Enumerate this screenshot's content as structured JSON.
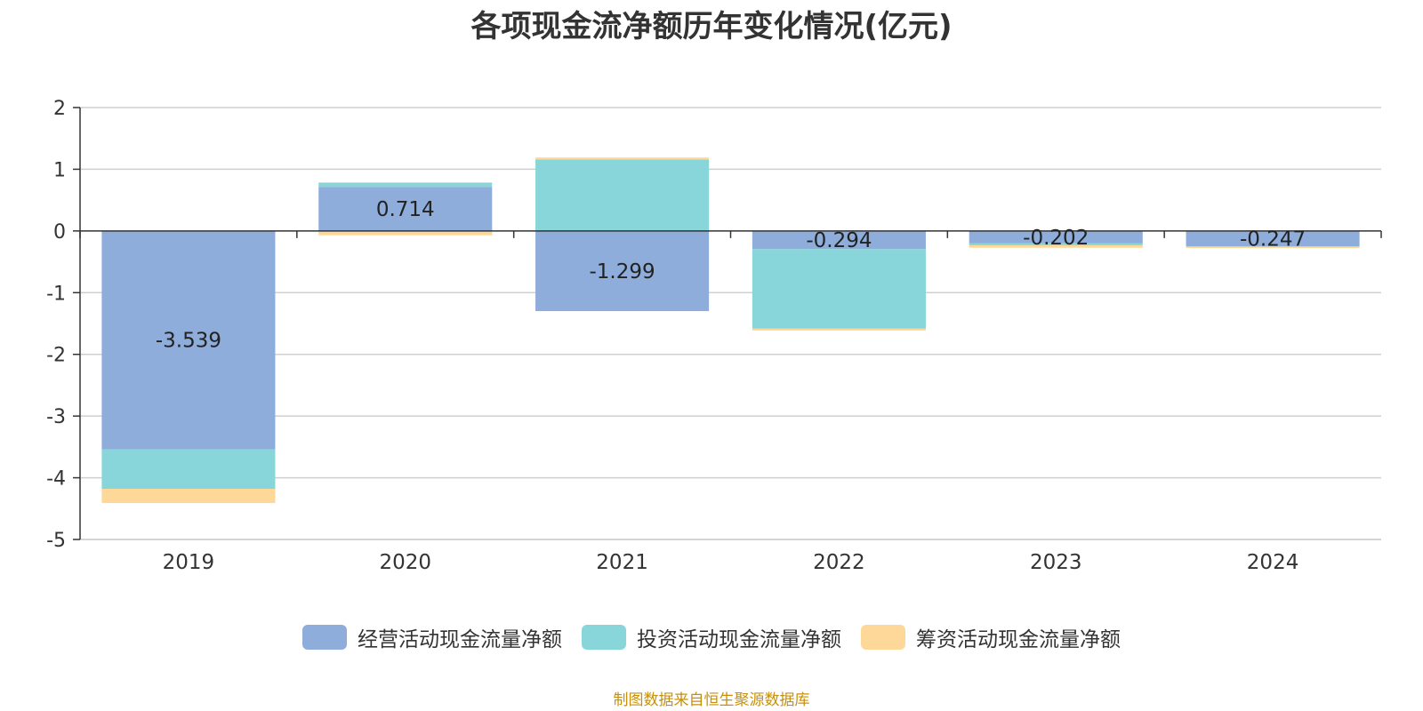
{
  "chart_data": {
    "type": "bar",
    "stacked": true,
    "title": "各项现金流净额历年变化情况(亿元)",
    "categories": [
      "2019",
      "2020",
      "2021",
      "2022",
      "2023",
      "2024"
    ],
    "ylim": [
      -5,
      2
    ],
    "yticks": [
      2,
      1,
      0,
      -1,
      -2,
      -3,
      -4,
      -5
    ],
    "grid": true,
    "legend_position": "bottom",
    "series": [
      {
        "name": "经营活动现金流量净额",
        "color": "#8eaddb",
        "values": [
          -3.539,
          0.714,
          -1.299,
          -0.294,
          -0.202,
          -0.247
        ],
        "labels": [
          "-3.539",
          "0.714",
          "-1.299",
          "-0.294",
          "-0.202",
          "-0.247"
        ]
      },
      {
        "name": "投资活动现金流量净额",
        "color": "#88d6d9",
        "values": [
          -0.64,
          0.07,
          1.16,
          -1.29,
          -0.03,
          -0.01
        ]
      },
      {
        "name": "筹资活动现金流量净额",
        "color": "#fdd898",
        "values": [
          -0.23,
          -0.07,
          0.03,
          -0.03,
          -0.04,
          -0.02
        ]
      }
    ]
  },
  "footer": {
    "source": "制图数据来自恒生聚源数据库"
  }
}
